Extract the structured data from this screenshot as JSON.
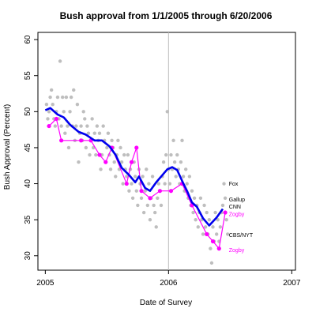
{
  "chart_data": {
    "type": "scatter",
    "title": "Bush approval from 1/1/2005 through 6/20/2006",
    "xlabel": "Date of Survey",
    "ylabel": "Bush Approval (Percent)",
    "xlim": [
      2004.94,
      2007.03
    ],
    "ylim": [
      28,
      61
    ],
    "x_ticks": [
      2005,
      2006,
      2007
    ],
    "x_tick_labels": [
      "2005",
      "2006",
      "2007"
    ],
    "y_ticks": [
      30,
      35,
      40,
      45,
      50,
      55,
      60
    ],
    "y_tick_labels": [
      "30",
      "35",
      "40",
      "45",
      "50",
      "55",
      "60"
    ],
    "vline_x": 2006,
    "colors": {
      "polls": "#bebebe",
      "trend": "#0000ee",
      "zogby": "#ff00ff",
      "vline": "#bebebe",
      "frame": "#000000"
    },
    "series": [
      {
        "role": "polls",
        "points": [
          [
            2005.01,
            51
          ],
          [
            2005.02,
            49
          ],
          [
            2005.03,
            50
          ],
          [
            2005.04,
            52
          ],
          [
            2005.05,
            53
          ],
          [
            2005.06,
            51
          ],
          [
            2005.07,
            49
          ],
          [
            2005.08,
            48
          ],
          [
            2005.09,
            50
          ],
          [
            2005.1,
            52
          ],
          [
            2005.11,
            49
          ],
          [
            2005.12,
            57
          ],
          [
            2005.13,
            48
          ],
          [
            2005.14,
            52
          ],
          [
            2005.15,
            50
          ],
          [
            2005.16,
            47
          ],
          [
            2005.17,
            52
          ],
          [
            2005.18,
            48
          ],
          [
            2005.19,
            45
          ],
          [
            2005.2,
            50
          ],
          [
            2005.21,
            52
          ],
          [
            2005.22,
            48
          ],
          [
            2005.23,
            53
          ],
          [
            2005.24,
            46
          ],
          [
            2005.25,
            48
          ],
          [
            2005.26,
            51
          ],
          [
            2005.27,
            43
          ],
          [
            2005.28,
            47
          ],
          [
            2005.29,
            48
          ],
          [
            2005.3,
            46
          ],
          [
            2005.31,
            50
          ],
          [
            2005.32,
            49
          ],
          [
            2005.33,
            45
          ],
          [
            2005.34,
            48
          ],
          [
            2005.35,
            47
          ],
          [
            2005.36,
            44
          ],
          [
            2005.37,
            46
          ],
          [
            2005.38,
            49
          ],
          [
            2005.39,
            45
          ],
          [
            2005.4,
            47
          ],
          [
            2005.41,
            44
          ],
          [
            2005.42,
            48
          ],
          [
            2005.43,
            46
          ],
          [
            2005.44,
            47
          ],
          [
            2005.45,
            42
          ],
          [
            2005.46,
            44
          ],
          [
            2005.47,
            48
          ],
          [
            2005.48,
            46
          ],
          [
            2005.49,
            43
          ],
          [
            2005.5,
            45
          ],
          [
            2005.51,
            47
          ],
          [
            2005.52,
            44
          ],
          [
            2005.53,
            42
          ],
          [
            2005.54,
            46
          ],
          [
            2005.55,
            45
          ],
          [
            2005.56,
            43
          ],
          [
            2005.57,
            41
          ],
          [
            2005.58,
            44
          ],
          [
            2005.59,
            46
          ],
          [
            2005.6,
            42
          ],
          [
            2005.61,
            45
          ],
          [
            2005.62,
            43
          ],
          [
            2005.63,
            40
          ],
          [
            2005.64,
            44
          ],
          [
            2005.65,
            42
          ],
          [
            2005.66,
            41
          ],
          [
            2005.67,
            44
          ],
          [
            2005.68,
            39
          ],
          [
            2005.69,
            42
          ],
          [
            2005.7,
            40
          ],
          [
            2005.71,
            38
          ],
          [
            2005.72,
            43
          ],
          [
            2005.73,
            41
          ],
          [
            2005.74,
            39
          ],
          [
            2005.75,
            37
          ],
          [
            2005.76,
            42
          ],
          [
            2005.77,
            40
          ],
          [
            2005.78,
            38
          ],
          [
            2005.79,
            41
          ],
          [
            2005.8,
            36
          ],
          [
            2005.81,
            39
          ],
          [
            2005.82,
            42
          ],
          [
            2005.83,
            37
          ],
          [
            2005.84,
            40
          ],
          [
            2005.85,
            35
          ],
          [
            2005.86,
            38
          ],
          [
            2005.87,
            41
          ],
          [
            2005.88,
            37
          ],
          [
            2005.89,
            36
          ],
          [
            2005.9,
            34
          ],
          [
            2005.91,
            38
          ],
          [
            2005.92,
            40
          ],
          [
            2005.93,
            39
          ],
          [
            2005.94,
            37
          ],
          [
            2005.95,
            41
          ],
          [
            2005.96,
            43
          ],
          [
            2005.97,
            40
          ],
          [
            2005.98,
            44
          ],
          [
            2005.99,
            50
          ],
          [
            2006.0,
            42
          ],
          [
            2006.01,
            40
          ],
          [
            2006.02,
            44
          ],
          [
            2006.03,
            42
          ],
          [
            2006.04,
            46
          ],
          [
            2006.05,
            43
          ],
          [
            2006.06,
            41
          ],
          [
            2006.07,
            44
          ],
          [
            2006.08,
            42
          ],
          [
            2006.09,
            40
          ],
          [
            2006.1,
            43
          ],
          [
            2006.11,
            46
          ],
          [
            2006.12,
            41
          ],
          [
            2006.13,
            39
          ],
          [
            2006.14,
            42
          ],
          [
            2006.15,
            40
          ],
          [
            2006.16,
            38
          ],
          [
            2006.17,
            41
          ],
          [
            2006.18,
            37
          ],
          [
            2006.19,
            39
          ],
          [
            2006.2,
            36
          ],
          [
            2006.21,
            38
          ],
          [
            2006.22,
            35
          ],
          [
            2006.23,
            37
          ],
          [
            2006.24,
            34
          ],
          [
            2006.25,
            36
          ],
          [
            2006.26,
            38
          ],
          [
            2006.27,
            35
          ],
          [
            2006.28,
            33
          ],
          [
            2006.29,
            37
          ],
          [
            2006.3,
            34
          ],
          [
            2006.31,
            36
          ],
          [
            2006.32,
            33
          ],
          [
            2006.33,
            35
          ],
          [
            2006.34,
            31
          ],
          [
            2006.35,
            29
          ],
          [
            2006.36,
            34
          ],
          [
            2006.37,
            32
          ],
          [
            2006.38,
            36
          ],
          [
            2006.39,
            33
          ],
          [
            2006.4,
            35
          ],
          [
            2006.41,
            32
          ],
          [
            2006.42,
            34
          ],
          [
            2006.43,
            36
          ],
          [
            2006.44,
            37
          ],
          [
            2006.45,
            40
          ],
          [
            2006.46,
            38
          ],
          [
            2006.47,
            35
          ],
          [
            2006.48,
            33
          ]
        ]
      },
      {
        "role": "trend",
        "points": [
          [
            2005.0,
            50.2
          ],
          [
            2005.04,
            50.5
          ],
          [
            2005.1,
            49.6
          ],
          [
            2005.15,
            49.2
          ],
          [
            2005.2,
            48.2
          ],
          [
            2005.27,
            47.2
          ],
          [
            2005.33,
            46.8
          ],
          [
            2005.4,
            46.0
          ],
          [
            2005.46,
            46.0
          ],
          [
            2005.52,
            45.2
          ],
          [
            2005.57,
            44.0
          ],
          [
            2005.62,
            42.2
          ],
          [
            2005.68,
            41.2
          ],
          [
            2005.73,
            40.2
          ],
          [
            2005.76,
            41.0
          ],
          [
            2005.81,
            39.4
          ],
          [
            2005.85,
            39.0
          ],
          [
            2005.9,
            40.2
          ],
          [
            2005.94,
            41.0
          ],
          [
            2005.99,
            42.0
          ],
          [
            2006.03,
            42.3
          ],
          [
            2006.07,
            41.9
          ],
          [
            2006.11,
            40.4
          ],
          [
            2006.15,
            39.0
          ],
          [
            2006.19,
            37.4
          ],
          [
            2006.23,
            36.8
          ],
          [
            2006.28,
            35.2
          ],
          [
            2006.33,
            34.2
          ],
          [
            2006.39,
            35.3
          ],
          [
            2006.44,
            36.5
          ]
        ]
      },
      {
        "role": "zogby",
        "points": [
          [
            2005.03,
            48
          ],
          [
            2005.09,
            49
          ],
          [
            2005.13,
            46
          ],
          [
            2005.29,
            46
          ],
          [
            2005.37,
            46
          ],
          [
            2005.44,
            44
          ],
          [
            2005.49,
            43
          ],
          [
            2005.54,
            45
          ],
          [
            2005.66,
            40
          ],
          [
            2005.7,
            43
          ],
          [
            2005.74,
            45
          ],
          [
            2005.78,
            39
          ],
          [
            2005.85,
            38
          ],
          [
            2005.93,
            39
          ],
          [
            2006.02,
            39
          ],
          [
            2006.11,
            40
          ],
          [
            2006.19,
            37
          ],
          [
            2006.31,
            33
          ],
          [
            2006.36,
            32
          ],
          [
            2006.41,
            31
          ],
          [
            2006.46,
            36
          ]
        ]
      }
    ],
    "annotations": [
      {
        "text": "Fox",
        "x": 2006.49,
        "y": 40.0,
        "color": "#000000"
      },
      {
        "text": "Gallup",
        "x": 2006.49,
        "y": 37.8,
        "color": "#000000"
      },
      {
        "text": "CNN",
        "x": 2006.49,
        "y": 36.8,
        "color": "#000000"
      },
      {
        "text": "Zogby",
        "x": 2006.49,
        "y": 35.8,
        "color": "#ff00ff"
      },
      {
        "text": "CBS/NYT",
        "x": 2006.49,
        "y": 32.9,
        "color": "#000000"
      },
      {
        "text": "Zogby",
        "x": 2006.49,
        "y": 30.8,
        "color": "#ff00ff"
      }
    ]
  }
}
